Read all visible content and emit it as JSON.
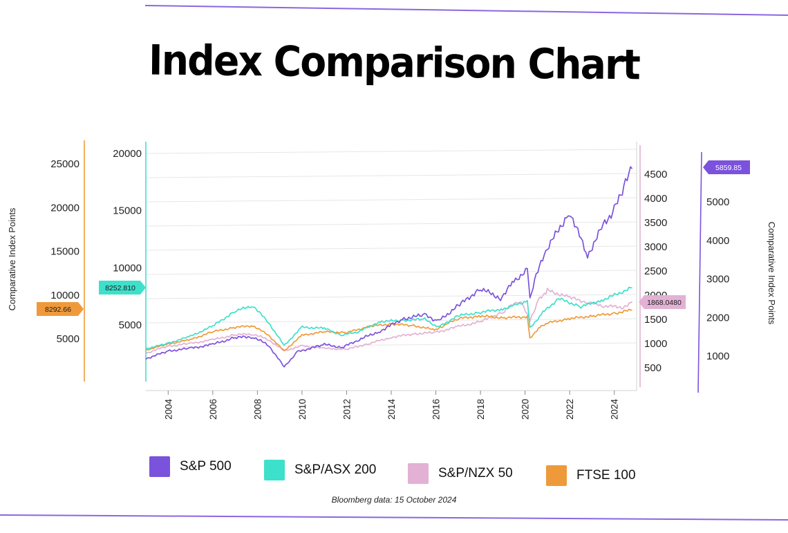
{
  "title": "Index Comparison Chart",
  "source": "Bloomberg data: 15 October 2024",
  "left_axis_label": "Comparative Index Points",
  "right_axis_label": "Comparative Index Points",
  "colors": {
    "sp500": "#7b52dc",
    "asx200": "#3de0cb",
    "nzx50": "#e2b1d4",
    "ftse100": "#ef9a3a",
    "grid": "#e6e6e6",
    "frame": "#dadada",
    "rule": "#8a66e0"
  },
  "chart_data": {
    "type": "line",
    "x_range": [
      2003,
      2025
    ],
    "x_ticks": [
      "2004",
      "2006",
      "2008",
      "2010",
      "2012",
      "2014",
      "2016",
      "2018",
      "2020",
      "2022",
      "2024"
    ],
    "grid": true,
    "legend_placement": "bottom",
    "axes": {
      "ftse_axis": {
        "ticks": [
          "5000",
          "10000",
          "15000",
          "20000",
          "25000"
        ]
      },
      "asx_axis": {
        "ticks": [
          "5000",
          "10000",
          "15000",
          "20000"
        ]
      },
      "nzx_axis": {
        "ticks": [
          "500",
          "1000",
          "1500",
          "2000",
          "2500",
          "3000",
          "3500",
          "4000",
          "4500"
        ]
      },
      "sp_axis": {
        "ticks": [
          "1000",
          "2000",
          "3000",
          "4000",
          "5000"
        ]
      }
    },
    "callouts": {
      "sp500": "5859.85",
      "asx200": "8252.810",
      "nzx50": "1868.0480",
      "ftse100": "8292.66"
    },
    "series": [
      {
        "key": "sp500",
        "name": "S&P 500",
        "x": [
          2003,
          2004,
          2005,
          2006,
          2007,
          2007.8,
          2008.5,
          2009.2,
          2009.8,
          2011,
          2011.8,
          2012.5,
          2013.5,
          2014.5,
          2015.5,
          2016.1,
          2017,
          2018,
          2018.9,
          2019.5,
          2020.1,
          2020.22,
          2020.5,
          2021,
          2022,
          2022.8,
          2023.5,
          2024,
          2024.5,
          2024.8
        ],
        "y": [
          930,
          1130,
          1200,
          1300,
          1480,
          1500,
          1280,
          720,
          1110,
          1300,
          1220,
          1410,
          1650,
          1960,
          2070,
          1900,
          2300,
          2750,
          2500,
          2950,
          3230,
          2450,
          3100,
          3800,
          4750,
          3600,
          4400,
          4800,
          5500,
          5860
        ]
      },
      {
        "key": "asx200",
        "name": "S&P/ASX 200",
        "x": [
          2003,
          2004,
          2005,
          2006,
          2007,
          2007.8,
          2008.5,
          2009.2,
          2010,
          2011,
          2011.8,
          2012.5,
          2013.5,
          2014.5,
          2015.5,
          2016.1,
          2017,
          2018,
          2019,
          2020.1,
          2020.22,
          2020.8,
          2021.5,
          2022.5,
          2023.5,
          2024.8
        ],
        "y": [
          2900,
          3400,
          4000,
          4900,
          6200,
          6700,
          5200,
          3200,
          4800,
          4700,
          4100,
          4400,
          5300,
          5400,
          5500,
          4800,
          5800,
          6100,
          6400,
          7100,
          4700,
          6100,
          7300,
          6600,
          7200,
          8253
        ]
      },
      {
        "key": "nzx50",
        "name": "S&P/NZX 50",
        "x": [
          2003,
          2004,
          2005,
          2006,
          2007,
          2007.8,
          2008.5,
          2009.2,
          2010,
          2011,
          2012,
          2013,
          2014,
          2015,
          2016,
          2017,
          2018,
          2019,
          2019.8,
          2020.22,
          2020.6,
          2021.0,
          2022,
          2022.8,
          2023.5,
          2024.4,
          2024.8
        ],
        "y": [
          800,
          950,
          1000,
          1080,
          1180,
          1200,
          1080,
          850,
          950,
          900,
          880,
          1000,
          1130,
          1200,
          1230,
          1350,
          1450,
          1650,
          1900,
          1480,
          1900,
          2100,
          1950,
          1850,
          1780,
          1750,
          1868
        ]
      },
      {
        "key": "ftse100",
        "name": "FTSE 100",
        "x": [
          2003,
          2004,
          2005,
          2006,
          2007,
          2007.8,
          2008.5,
          2009.2,
          2010,
          2011,
          2012,
          2013,
          2014,
          2015,
          2016,
          2016.5,
          2017,
          2018,
          2019,
          2020.1,
          2020.22,
          2020.6,
          2021,
          2022,
          2023,
          2024,
          2024.8
        ],
        "y": [
          3700,
          4400,
          4900,
          5800,
          6300,
          6500,
          5400,
          3600,
          5400,
          5800,
          5700,
          6400,
          6700,
          6500,
          6000,
          6700,
          7300,
          7600,
          7400,
          7500,
          5000,
          6200,
          6800,
          7300,
          7600,
          7900,
          8293
        ]
      }
    ]
  }
}
